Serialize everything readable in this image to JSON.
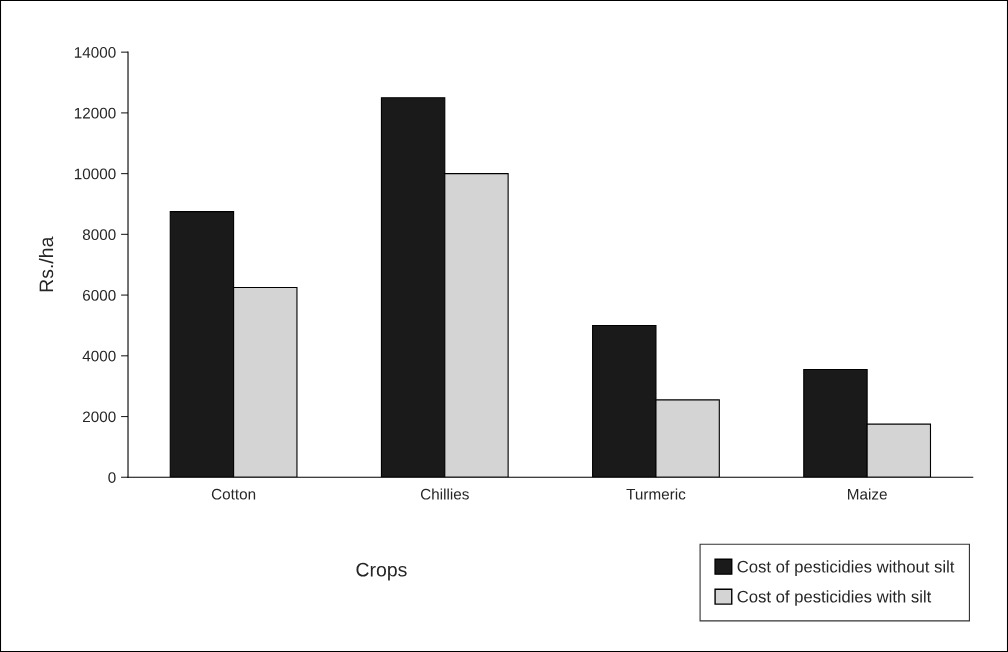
{
  "chart_data": {
    "type": "bar",
    "xlabel": "Crops",
    "ylabel": "Rs./ha",
    "categories": [
      "Cotton",
      "Chillies",
      "Turmeric",
      "Maize"
    ],
    "series": [
      {
        "name": "Cost of pesticidies without silt",
        "color": "#1a1a1a",
        "values": [
          8750,
          12500,
          5000,
          3550
        ]
      },
      {
        "name": "Cost of pesticidies with silt",
        "color": "#d4d4d4",
        "values": [
          6250,
          10000,
          2550,
          1750
        ]
      }
    ],
    "ylim": [
      0,
      14000
    ],
    "yticks": [
      0,
      2000,
      4000,
      6000,
      8000,
      10000,
      12000,
      14000
    ],
    "grid": false,
    "legend": "bottom right"
  }
}
